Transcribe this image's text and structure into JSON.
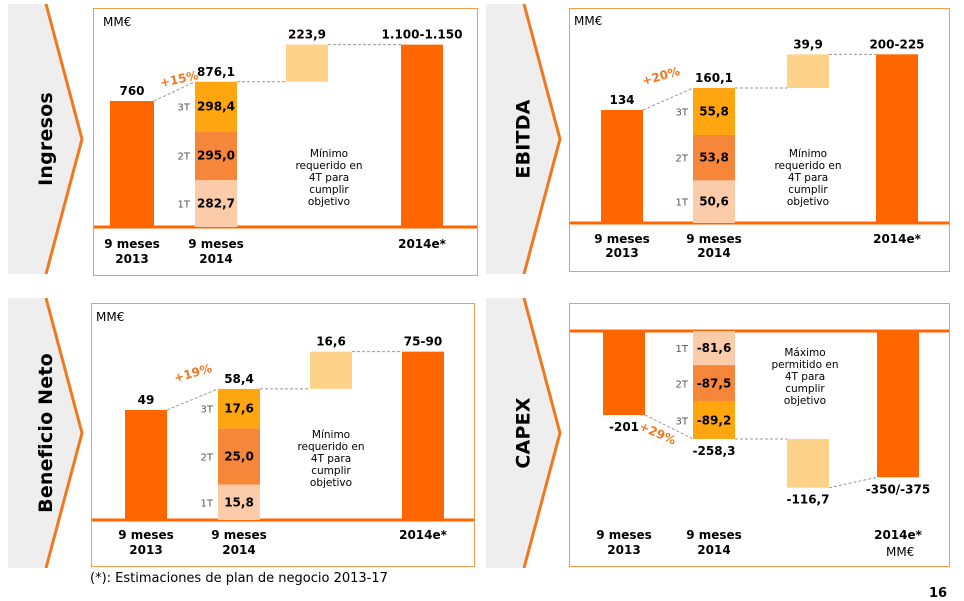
{
  "colors": {
    "main_bar": "#ff6600",
    "q3": "#ffa510",
    "q2": "#f6863a",
    "q1": "#fcccaa",
    "gap": "#ffd28a",
    "growth": "#f07820",
    "panel_border": "#f39c4b",
    "tab_fill": "#eeeeee",
    "tab_edge": "#f07820"
  },
  "tabs": [
    "Ingresos",
    "EBITDA",
    "Beneficio Neto",
    "CAPEX"
  ],
  "footnote": "(*): Estimaciones de plan de negocio 2013-17",
  "page_number": "16",
  "chart_data": [
    {
      "type": "bar",
      "subtype": "waterfall",
      "unit": "MM€",
      "categories": [
        "9 meses 2013",
        "9 meses 2014",
        "2014e*"
      ],
      "base_2013": {
        "label": "760",
        "value": 760
      },
      "quarters_2014": [
        {
          "quarter": "1T",
          "label": "282,7",
          "value": 282.7
        },
        {
          "quarter": "2T",
          "label": "295,0",
          "value": 295.0
        },
        {
          "quarter": "3T",
          "label": "298,4",
          "value": 298.4
        }
      ],
      "total_2014": {
        "label": "876,1",
        "value": 876.1
      },
      "gap": {
        "label": "223,9",
        "value": 223.9
      },
      "target_2014e": {
        "label": "1.100-1.150",
        "value_low": 1100,
        "value_high": 1150
      },
      "growth": "+15%",
      "note": [
        "Mínimo",
        "requerido en",
        "4T para",
        "cumplir",
        "objetivo"
      ]
    },
    {
      "type": "bar",
      "subtype": "waterfall",
      "unit": "MM€",
      "categories": [
        "9 meses 2013",
        "9 meses 2014",
        "2014e*"
      ],
      "base_2013": {
        "label": "134",
        "value": 134
      },
      "quarters_2014": [
        {
          "quarter": "1T",
          "label": "50,6",
          "value": 50.6
        },
        {
          "quarter": "2T",
          "label": "53,8",
          "value": 53.8
        },
        {
          "quarter": "3T",
          "label": "55,8",
          "value": 55.8
        }
      ],
      "total_2014": {
        "label": "160,1",
        "value": 160.1
      },
      "gap": {
        "label": "39,9",
        "value": 39.9
      },
      "target_2014e": {
        "label": "200-225",
        "value_low": 200,
        "value_high": 225
      },
      "growth": "+20%",
      "note": [
        "Mínimo",
        "requerido en",
        "4T para",
        "cumplir",
        "objetivo"
      ]
    },
    {
      "type": "bar",
      "subtype": "waterfall",
      "unit": "MM€",
      "categories": [
        "9 meses 2013",
        "9 meses 2014",
        "2014e*"
      ],
      "base_2013": {
        "label": "49",
        "value": 49
      },
      "quarters_2014": [
        {
          "quarter": "1T",
          "label": "15,8",
          "value": 15.8
        },
        {
          "quarter": "2T",
          "label": "25,0",
          "value": 25.0
        },
        {
          "quarter": "3T",
          "label": "17,6",
          "value": 17.6
        }
      ],
      "total_2014": {
        "label": "58,4",
        "value": 58.4
      },
      "gap": {
        "label": "16,6",
        "value": 16.6
      },
      "target_2014e": {
        "label": "75-90",
        "value_low": 75,
        "value_high": 90
      },
      "growth": "+19%",
      "note": [
        "Mínimo",
        "requerido en",
        "4T para",
        "cumplir",
        "objetivo"
      ]
    },
    {
      "type": "bar",
      "subtype": "waterfall-negative",
      "unit": "MM€",
      "categories": [
        "9 meses 2013",
        "9 meses 2014",
        "2014e*"
      ],
      "base_2013": {
        "label": "-201",
        "value": -201
      },
      "quarters_2014": [
        {
          "quarter": "1T",
          "label": "-81,6",
          "value": -81.6
        },
        {
          "quarter": "2T",
          "label": "-87,5",
          "value": -87.5
        },
        {
          "quarter": "3T",
          "label": "-89,2",
          "value": -89.2
        }
      ],
      "total_2014": {
        "label": "-258,3",
        "value": -258.3
      },
      "gap": {
        "label": "-116,7",
        "value": -116.7
      },
      "target_2014e": {
        "label": "-350/-375",
        "value_low": -350,
        "value_high": -375
      },
      "growth": "+29%",
      "note": [
        "Máximo",
        "permitido en",
        "4T para",
        "cumplir",
        "objetivo"
      ]
    }
  ]
}
